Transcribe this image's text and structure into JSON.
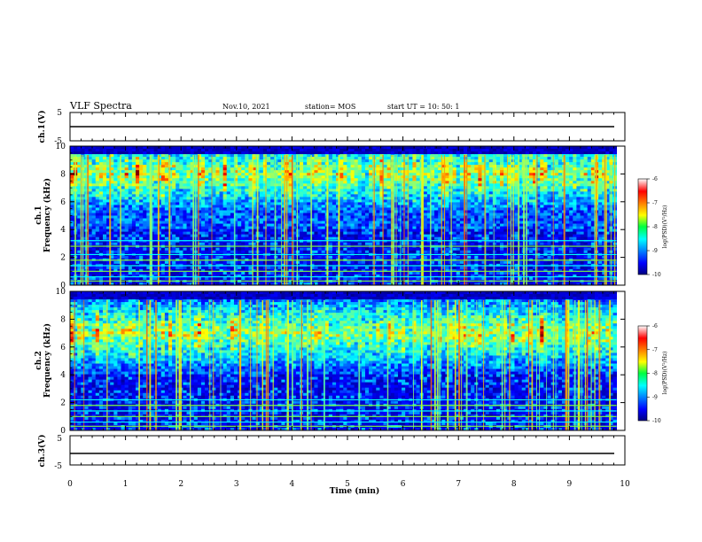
{
  "header": {
    "title": "VLF Spectra",
    "date": "Nov.10, 2021",
    "station": "station= MOS",
    "start": "start  UT =   10: 50: 1"
  },
  "chart_data": [
    {
      "type": "line",
      "panel": "ch1_voltage",
      "ylabel": "ch.1(V)",
      "ylim": [
        -5,
        5
      ],
      "yticks": [
        "5",
        "-5"
      ],
      "level": 0,
      "xlim": [
        0,
        10
      ]
    },
    {
      "type": "heatmap",
      "panel": "ch1_spectrogram",
      "ylabel": "ch.1\nFrequency (kHz)",
      "ylim": [
        0,
        10
      ],
      "yticks": [
        "0",
        "2",
        "4",
        "6",
        "8",
        "10"
      ],
      "xlim": [
        0,
        10
      ],
      "data_end_min": 9.85,
      "dominant_band_khz": [
        6.5,
        9.5
      ],
      "horizontal_lines_khz": [
        0.3,
        0.6,
        1.0,
        1.4,
        1.8,
        2.2,
        2.8,
        3.2
      ],
      "colorbar": {
        "label": "log(PSD)(V²/Hz)",
        "range": [
          -10,
          -6
        ],
        "ticks": [
          "-6",
          "-7",
          "-8",
          "-9",
          "-10"
        ]
      }
    },
    {
      "type": "heatmap",
      "panel": "ch2_spectrogram",
      "ylabel": "ch.2\nFrequency (kHz)",
      "ylim": [
        0,
        10
      ],
      "yticks": [
        "0",
        "2",
        "4",
        "6",
        "8",
        "10"
      ],
      "xlim": [
        0,
        10
      ],
      "data_end_min": 9.85,
      "dominant_band_khz": [
        5.5,
        8.5
      ],
      "horizontal_lines_khz": [
        0.3,
        0.6,
        1.0,
        1.4,
        1.8,
        2.2
      ],
      "colorbar": {
        "label": "log(PSD)(V²/Hz)",
        "range": [
          -10,
          -6
        ],
        "ticks": [
          "-6",
          "-7",
          "-8",
          "-9",
          "-10"
        ]
      }
    },
    {
      "type": "line",
      "panel": "ch3_voltage",
      "ylabel": "ch.3(V)",
      "ylim": [
        -5,
        5
      ],
      "yticks": [
        "5",
        "-5"
      ],
      "level": 0,
      "xlim": [
        0,
        10
      ]
    }
  ],
  "xaxis": {
    "label": "Time  (min)",
    "ticks": [
      "0",
      "1",
      "2",
      "3",
      "4",
      "5",
      "6",
      "7",
      "8",
      "9",
      "10"
    ]
  }
}
